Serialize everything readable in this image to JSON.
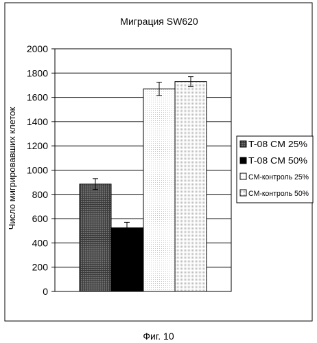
{
  "chart_data": {
    "type": "bar",
    "title": "Миграция SW620",
    "ylabel": "Число мигрировавших клеток",
    "xlabel": "",
    "ylim": [
      0,
      2000
    ],
    "yticks": [
      "0",
      "200",
      "400",
      "600",
      "800",
      "1000",
      "1200",
      "1400",
      "1600",
      "1800",
      "2000"
    ],
    "grid": true,
    "legend_position": "right",
    "series": [
      {
        "name": "T-08 CM 25%",
        "value": 885,
        "error": 45,
        "color": "#5a5a5a",
        "pattern": "grid"
      },
      {
        "name": "T-08 CM 50%",
        "value": 525,
        "error": 45,
        "color": "#000000",
        "pattern": "solid"
      },
      {
        "name": "CM-контроль 25%",
        "value": 1670,
        "error": 55,
        "color": "#ffffff",
        "pattern": "fine-dots"
      },
      {
        "name": "CM-контроль 50%",
        "value": 1730,
        "error": 40,
        "color": "#f0f0f0",
        "pattern": "dots"
      }
    ]
  },
  "caption": "Фиг. 10"
}
